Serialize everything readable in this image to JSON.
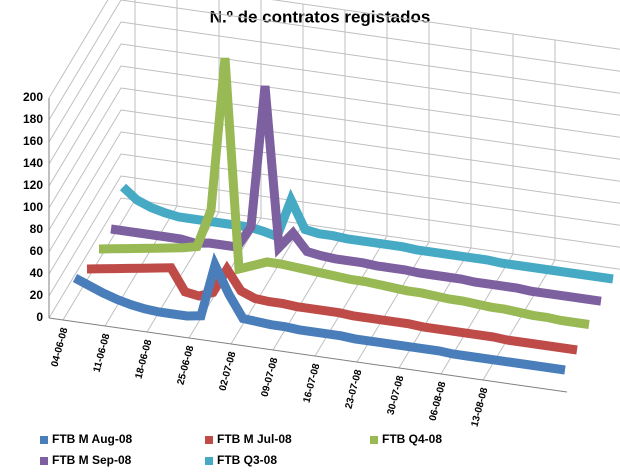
{
  "chart_data": {
    "type": "line3d",
    "title": "N.º de contratos registados",
    "categories": [
      "04-06-08",
      null,
      null,
      "11-06-08",
      null,
      null,
      "18-06-08",
      null,
      null,
      "25-06-08",
      null,
      null,
      "02-07-08",
      null,
      null,
      "09-07-08",
      null,
      null,
      "16-07-08",
      null,
      null,
      "23-07-08",
      null,
      null,
      "30-07-08",
      null,
      null,
      "06-08-08",
      null,
      null,
      "13-08-08",
      null,
      null,
      null,
      null,
      null
    ],
    "ylim": [
      0,
      200
    ],
    "yticks": [
      0,
      20,
      40,
      60,
      80,
      100,
      120,
      140,
      160,
      180,
      200
    ],
    "grid": true,
    "legend": "bottom",
    "series": [
      {
        "name": "FTB M Aug-08",
        "color": "#4a7ebb",
        "values": [
          20,
          15,
          10,
          6,
          3,
          1,
          0,
          0,
          0,
          2,
          50,
          25,
          5,
          4,
          3,
          3,
          2,
          2,
          2,
          2,
          1,
          1,
          1,
          1,
          1,
          1,
          1,
          0,
          0,
          0,
          0,
          0,
          0,
          0,
          0,
          0
        ]
      },
      {
        "name": "FTB M Jul-08",
        "color": "#be4b48",
        "values": [
          10,
          12,
          14,
          16,
          18,
          20,
          22,
          2,
          0,
          5,
          28,
          10,
          5,
          4,
          4,
          3,
          3,
          3,
          3,
          2,
          2,
          2,
          2,
          2,
          1,
          1,
          1,
          1,
          1,
          1,
          0,
          0,
          0,
          0,
          0,
          0
        ]
      },
      {
        "name": "FTB Q4-08",
        "color": "#98b954",
        "values": [
          10,
          12,
          14,
          16,
          18,
          20,
          22,
          25,
          60,
          200,
          10,
          15,
          20,
          20,
          19,
          18,
          17,
          16,
          15,
          15,
          14,
          13,
          12,
          12,
          11,
          10,
          10,
          9,
          8,
          8,
          7,
          6,
          6,
          5,
          5,
          5
        ]
      },
      {
        "name": "FTB M Sep-08",
        "color": "#7d60a0",
        "values": [
          10,
          10,
          10,
          10,
          10,
          10,
          8,
          10,
          10,
          10,
          30,
          160,
          15,
          30,
          15,
          13,
          12,
          12,
          12,
          11,
          11,
          11,
          10,
          10,
          10,
          10,
          9,
          9,
          9,
          9,
          8,
          8,
          8,
          8,
          8,
          8
        ]
      },
      {
        "name": "FTB Q3-08",
        "color": "#46aac5",
        "values": [
          30,
          20,
          15,
          12,
          10,
          10,
          10,
          10,
          10,
          10,
          8,
          5,
          40,
          15,
          13,
          13,
          12,
          12,
          12,
          12,
          12,
          11,
          11,
          11,
          11,
          11,
          11,
          10,
          10,
          10,
          10,
          10,
          10,
          10,
          10,
          10
        ]
      }
    ]
  }
}
